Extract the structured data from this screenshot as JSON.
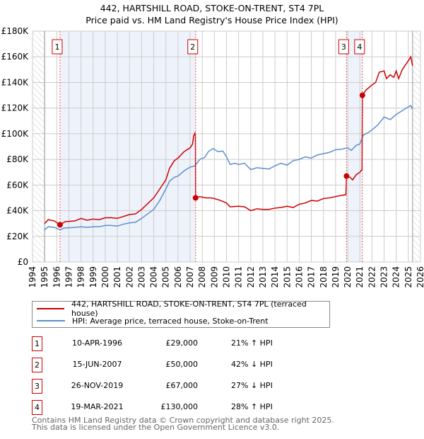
{
  "title": {
    "line1": "442, HARTSHILL ROAD, STOKE-ON-TRENT, ST4 7PL",
    "line2": "Price paid vs. HM Land Registry's House Price Index (HPI)"
  },
  "colors": {
    "property": "#cc0000",
    "hpi": "#5b8fd0",
    "shade": "#eef3fb",
    "grid": "#cccccc"
  },
  "chart_data": {
    "type": "line",
    "title": "Price paid vs. HM Land Registry's House Price Index (HPI)",
    "xlim": [
      1994,
      2026
    ],
    "ylim": [
      0,
      180000
    ],
    "x_ticks": [
      "1994",
      "1995",
      "1996",
      "1997",
      "1998",
      "1999",
      "2000",
      "2001",
      "2002",
      "2003",
      "2004",
      "2005",
      "2006",
      "2007",
      "2008",
      "2009",
      "2010",
      "2011",
      "2012",
      "2013",
      "2014",
      "2015",
      "2016",
      "2017",
      "2018",
      "2019",
      "2020",
      "2021",
      "2022",
      "2023",
      "2024",
      "2025",
      "2026"
    ],
    "y_ticks": [
      {
        "v": 0,
        "label": "£0"
      },
      {
        "v": 20000,
        "label": "£20K"
      },
      {
        "v": 40000,
        "label": "£40K"
      },
      {
        "v": 60000,
        "label": "£60K"
      },
      {
        "v": 80000,
        "label": "£80K"
      },
      {
        "v": 100000,
        "label": "£100K"
      },
      {
        "v": 120000,
        "label": "£120K"
      },
      {
        "v": 140000,
        "label": "£140K"
      },
      {
        "v": 160000,
        "label": "£160K"
      },
      {
        "v": 180000,
        "label": "£180K"
      }
    ],
    "grid": true,
    "hatched_ranges": [
      [
        1994,
        1995
      ],
      [
        2025.35,
        2026
      ]
    ],
    "series": [
      {
        "name": "442, HARTSHILL ROAD, STOKE-ON-TRENT, ST4 7PL (terraced house)",
        "color": "#cc0000",
        "points": [
          [
            1995,
            30000
          ],
          [
            1995.3,
            33000
          ],
          [
            1995.8,
            32000
          ],
          [
            1996.27,
            29000
          ],
          [
            1996.7,
            31500
          ],
          [
            1997.5,
            32000
          ],
          [
            1998,
            34000
          ],
          [
            1998.5,
            32500
          ],
          [
            1999,
            33500
          ],
          [
            1999.5,
            33000
          ],
          [
            2000,
            34500
          ],
          [
            2000.5,
            34500
          ],
          [
            2001,
            34000
          ],
          [
            2001.5,
            35500
          ],
          [
            2002,
            37000
          ],
          [
            2002.5,
            37500
          ],
          [
            2003,
            41000
          ],
          [
            2003.5,
            45500
          ],
          [
            2004,
            50000
          ],
          [
            2004.5,
            57000
          ],
          [
            2005,
            64000
          ],
          [
            2005.3,
            73000
          ],
          [
            2005.7,
            79000
          ],
          [
            2006,
            81000
          ],
          [
            2006.5,
            86000
          ],
          [
            2007,
            89000
          ],
          [
            2007.2,
            92000
          ],
          [
            2007.3,
            98500
          ],
          [
            2007.4,
            100500
          ],
          [
            2007.44,
            98000
          ],
          [
            2007.45,
            50000
          ],
          [
            2007.8,
            51000
          ],
          [
            2008.3,
            50000
          ],
          [
            2008.7,
            50000
          ],
          [
            2009,
            49500
          ],
          [
            2009.5,
            48000
          ],
          [
            2010,
            46000
          ],
          [
            2010.3,
            43000
          ],
          [
            2011,
            43500
          ],
          [
            2011.5,
            43000
          ],
          [
            2012,
            40000
          ],
          [
            2012.5,
            41500
          ],
          [
            2013,
            41000
          ],
          [
            2013.5,
            41000
          ],
          [
            2014,
            42000
          ],
          [
            2014.5,
            42500
          ],
          [
            2015,
            43500
          ],
          [
            2015.5,
            42500
          ],
          [
            2016,
            45000
          ],
          [
            2016.5,
            46000
          ],
          [
            2017,
            48000
          ],
          [
            2017.5,
            47500
          ],
          [
            2018,
            49500
          ],
          [
            2018.5,
            50000
          ],
          [
            2019,
            51000
          ],
          [
            2019.5,
            52000
          ],
          [
            2019.85,
            52500
          ],
          [
            2019.9,
            67000
          ],
          [
            2020.2,
            66000
          ],
          [
            2020.4,
            64000
          ],
          [
            2020.7,
            68000
          ],
          [
            2021.0,
            70000
          ],
          [
            2021.18,
            72000
          ],
          [
            2021.21,
            130000
          ],
          [
            2021.5,
            134000
          ],
          [
            2022,
            138000
          ],
          [
            2022.3,
            140000
          ],
          [
            2022.6,
            148000
          ],
          [
            2023,
            149000
          ],
          [
            2023.2,
            143000
          ],
          [
            2023.5,
            146000
          ],
          [
            2023.8,
            144000
          ],
          [
            2024,
            149000
          ],
          [
            2024.2,
            143000
          ],
          [
            2024.5,
            150000
          ],
          [
            2025,
            157000
          ],
          [
            2025.2,
            160000
          ],
          [
            2025.35,
            153000
          ]
        ]
      },
      {
        "name": "HPI: Average price, terraced house, Stoke-on-Trent",
        "color": "#5b8fd0",
        "points": [
          [
            1995,
            25000
          ],
          [
            1995.3,
            27500
          ],
          [
            1995.8,
            27000
          ],
          [
            1996.3,
            25000
          ],
          [
            1996.6,
            26500
          ],
          [
            1997.5,
            27000
          ],
          [
            1998,
            27500
          ],
          [
            1998.5,
            27000
          ],
          [
            1999,
            27500
          ],
          [
            1999.5,
            27500
          ],
          [
            2000,
            28500
          ],
          [
            2000.5,
            28500
          ],
          [
            2001,
            28000
          ],
          [
            2001.5,
            29500
          ],
          [
            2002,
            30500
          ],
          [
            2002.5,
            31000
          ],
          [
            2003,
            34000
          ],
          [
            2003.5,
            37500
          ],
          [
            2004,
            41000
          ],
          [
            2004.5,
            48000
          ],
          [
            2005,
            57000
          ],
          [
            2005.3,
            63000
          ],
          [
            2005.7,
            66000
          ],
          [
            2006,
            67000
          ],
          [
            2006.5,
            71000
          ],
          [
            2007,
            74000
          ],
          [
            2007.4,
            75000
          ],
          [
            2007.8,
            80000
          ],
          [
            2008.2,
            81500
          ],
          [
            2008.5,
            86000
          ],
          [
            2008.9,
            88500
          ],
          [
            2009.3,
            86000
          ],
          [
            2009.7,
            86500
          ],
          [
            2010,
            82000
          ],
          [
            2010.3,
            76000
          ],
          [
            2010.7,
            77000
          ],
          [
            2011,
            76000
          ],
          [
            2011.5,
            77000
          ],
          [
            2012,
            72000
          ],
          [
            2012.5,
            73500
          ],
          [
            2013,
            73000
          ],
          [
            2013.5,
            72500
          ],
          [
            2014,
            75000
          ],
          [
            2014.5,
            77000
          ],
          [
            2015,
            75500
          ],
          [
            2015.5,
            79000
          ],
          [
            2016,
            80000
          ],
          [
            2016.5,
            82000
          ],
          [
            2017,
            81000
          ],
          [
            2017.5,
            83500
          ],
          [
            2018,
            84500
          ],
          [
            2018.5,
            85500
          ],
          [
            2019,
            87500
          ],
          [
            2019.5,
            88000
          ],
          [
            2020,
            89000
          ],
          [
            2020.3,
            87000
          ],
          [
            2020.7,
            91000
          ],
          [
            2021,
            92000
          ],
          [
            2021.3,
            99000
          ],
          [
            2021.7,
            101000
          ],
          [
            2022,
            103000
          ],
          [
            2022.5,
            107000
          ],
          [
            2023,
            113000
          ],
          [
            2023.5,
            111000
          ],
          [
            2024,
            115000
          ],
          [
            2024.5,
            118000
          ],
          [
            2025,
            121000
          ],
          [
            2025.2,
            122000
          ],
          [
            2025.35,
            119000
          ]
        ]
      }
    ],
    "sales": [
      {
        "label": "1",
        "x": 1996.27,
        "price": 29000
      },
      {
        "label": "2",
        "x": 2007.45,
        "price": 50000
      },
      {
        "label": "3",
        "x": 2019.9,
        "price": 67000
      },
      {
        "label": "4",
        "x": 2021.21,
        "price": 130000
      }
    ],
    "shaded_ranges": [
      [
        1996.27,
        2007.45
      ],
      [
        2019.9,
        2021.21
      ]
    ]
  },
  "legend": {
    "property_label": "442, HARTSHILL ROAD, STOKE-ON-TRENT, ST4 7PL (terraced house)",
    "hpi_label": "HPI: Average price, terraced house, Stoke-on-Trent"
  },
  "transactions": [
    {
      "num": "1",
      "date": "10-APR-1996",
      "price": "£29,000",
      "hpi": "21% ↑ HPI"
    },
    {
      "num": "2",
      "date": "15-JUN-2007",
      "price": "£50,000",
      "hpi": "42% ↓ HPI"
    },
    {
      "num": "3",
      "date": "26-NOV-2019",
      "price": "£67,000",
      "hpi": "27% ↓ HPI"
    },
    {
      "num": "4",
      "date": "19-MAR-2021",
      "price": "£130,000",
      "hpi": "28% ↑ HPI"
    }
  ],
  "footer": {
    "line1": "Contains HM Land Registry data © Crown copyright and database right 2025.",
    "line2": "This data is licensed under the Open Government Licence v3.0."
  }
}
